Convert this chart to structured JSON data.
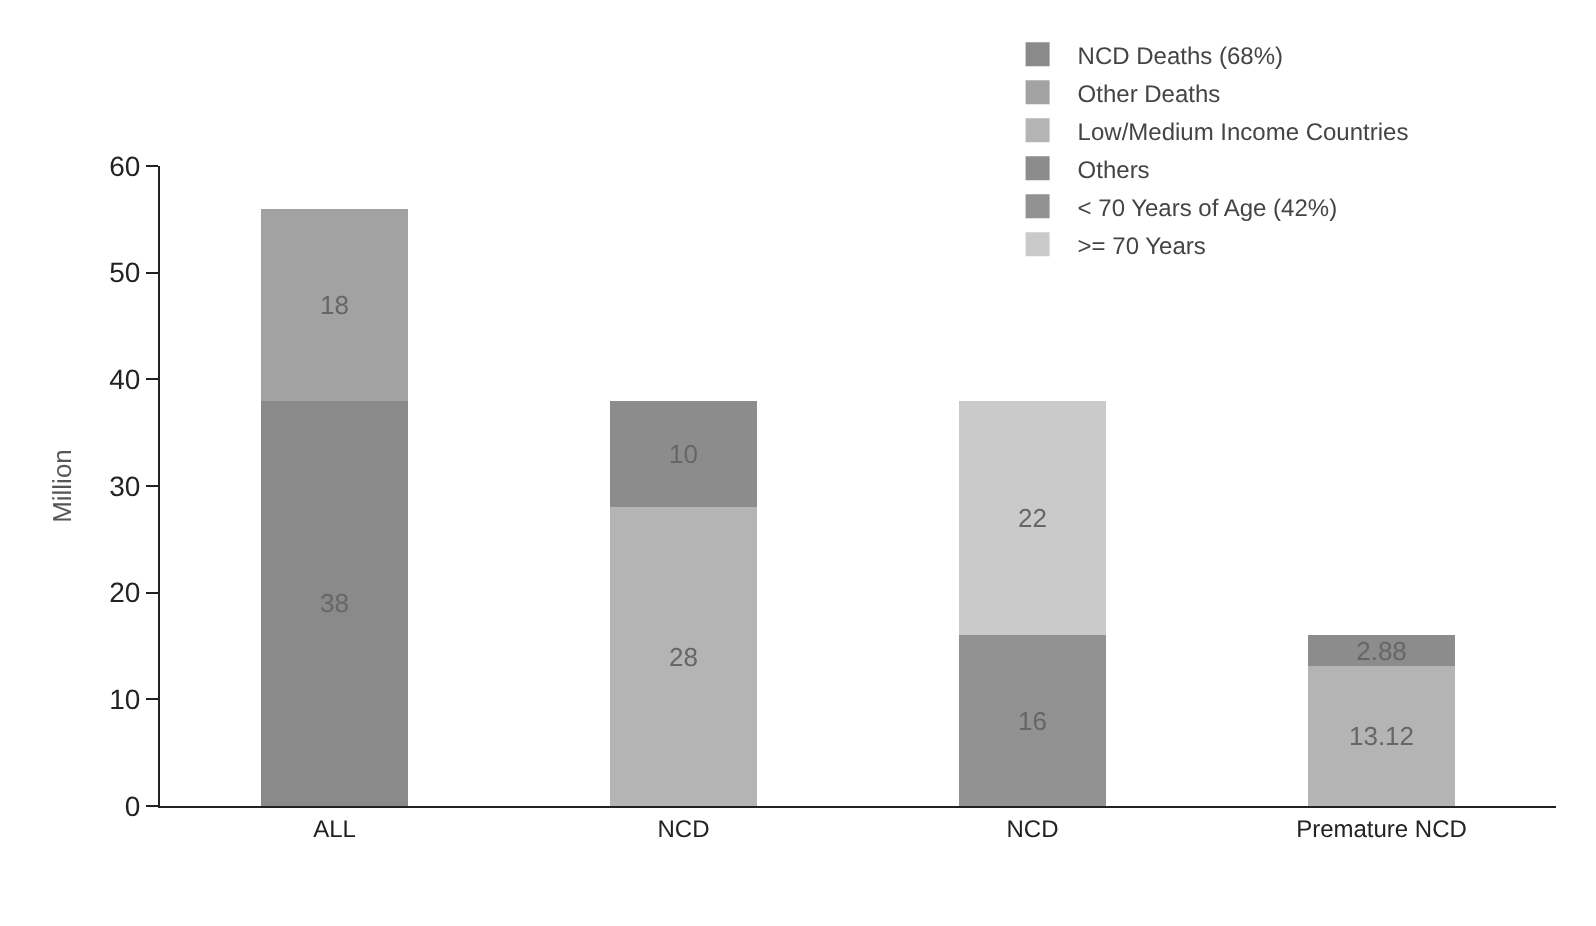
{
  "chart_data": {
    "type": "bar",
    "stacked": true,
    "ylabel": "Million",
    "categories": [
      "ALL",
      "NCD",
      "NCD",
      "Premature NCD"
    ],
    "series": [
      {
        "name": "NCD Deaths (68%)",
        "color": "#8a8a8a",
        "values": [
          38,
          null,
          null,
          null
        ]
      },
      {
        "name": "Other Deaths",
        "color": "#a2a2a2",
        "values": [
          18,
          null,
          null,
          null
        ]
      },
      {
        "name": "Low/Medium Income Countries",
        "color": "#b4b4b4",
        "values": [
          null,
          28,
          null,
          13.12
        ]
      },
      {
        "name": "Others",
        "color": "#8c8c8c",
        "values": [
          null,
          10,
          null,
          2.88
        ]
      },
      {
        "name": "< 70 Years of Age (42%)",
        "color": "#929292",
        "values": [
          null,
          null,
          16,
          null
        ]
      },
      {
        "name": ">= 70 Years",
        "color": "#cacaca",
        "values": [
          null,
          null,
          22,
          null
        ]
      }
    ],
    "ylim": [
      0,
      60
    ],
    "yticks": [
      0,
      10,
      20,
      30,
      40,
      50,
      60
    ],
    "data_labels": true,
    "legend": "top right"
  }
}
